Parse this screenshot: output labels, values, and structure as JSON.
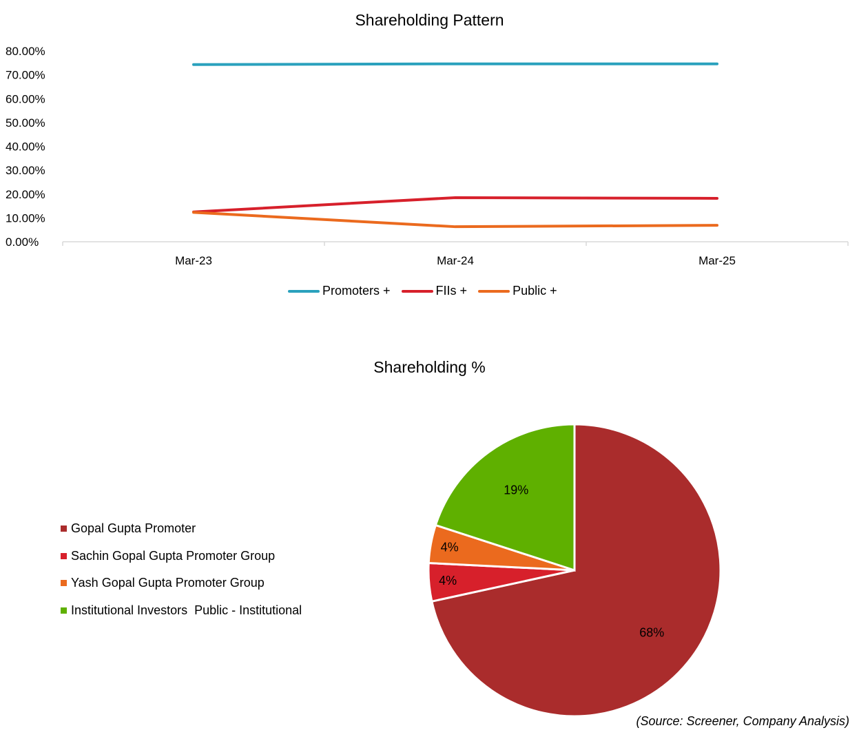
{
  "line_chart": {
    "title": "Shareholding Pattern"
  },
  "pie_chart": {
    "title": "Shareholding %"
  },
  "source": "(Source: Screener, Company Analysis)",
  "chart_data": [
    {
      "type": "line",
      "title": "Shareholding Pattern",
      "categories": [
        "Mar-23",
        "Mar-24",
        "Mar-25"
      ],
      "y_ticks": [
        "0.00%",
        "10.00%",
        "20.00%",
        "30.00%",
        "40.00%",
        "50.00%",
        "60.00%",
        "70.00%",
        "80.00%"
      ],
      "ylim": [
        0,
        80
      ],
      "grid": false,
      "legend_position": "bottom",
      "series": [
        {
          "name": "Promoters +",
          "values": [
            74.3,
            74.6,
            74.6
          ],
          "color": "#2aa1bd"
        },
        {
          "name": "FIIs +",
          "values": [
            12.5,
            18.5,
            18.2
          ],
          "color": "#d7202b"
        },
        {
          "name": "Public +",
          "values": [
            12.3,
            6.3,
            6.9
          ],
          "color": "#eb6a1e"
        }
      ]
    },
    {
      "type": "pie",
      "title": "Shareholding %",
      "legend_position": "left",
      "slices": [
        {
          "name": "Gopal Gupta Promoter",
          "value": 68,
          "label": "68%",
          "color": "#aa2c2c"
        },
        {
          "name": "Sachin Gopal Gupta Promoter Group",
          "value": 4,
          "label": "4%",
          "color": "#d7202b"
        },
        {
          "name": "Yash Gopal Gupta Promoter Group",
          "value": 4,
          "label": "4%",
          "color": "#eb6a1e"
        },
        {
          "name": "Institutional Investors  Public - Institutional",
          "value": 19,
          "label": "19%",
          "color": "#5fb000"
        }
      ]
    }
  ]
}
